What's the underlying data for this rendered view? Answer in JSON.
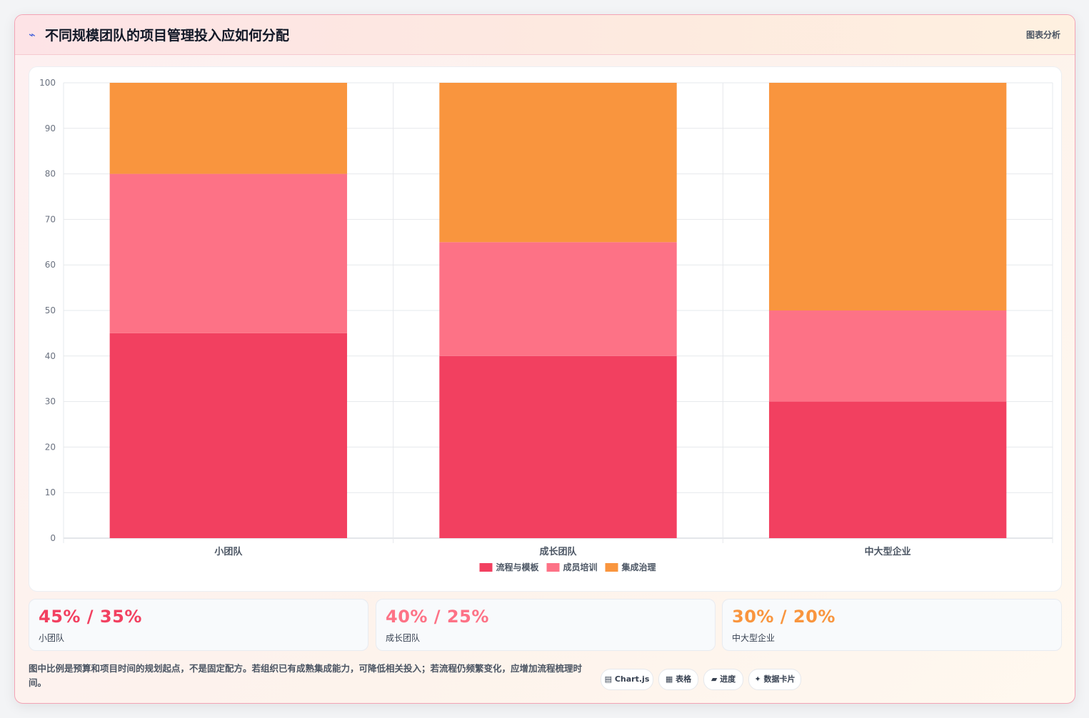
{
  "header": {
    "icon": "chart-line-icon",
    "title": "不同规模团队的项目管理投入应如何分配",
    "right_label": "图表分析"
  },
  "chart_data": {
    "type": "bar",
    "stacked": true,
    "title": "",
    "xlabel": "",
    "ylabel": "",
    "categories": [
      "小团队",
      "成长团队",
      "中大型企业"
    ],
    "series": [
      {
        "name": "流程与模板",
        "color": "#f24060",
        "values": [
          45,
          40,
          30
        ]
      },
      {
        "name": "成员培训",
        "color": "#fd7286",
        "values": [
          35,
          25,
          20
        ]
      },
      {
        "name": "集成治理",
        "color": "#f9953e",
        "values": [
          20,
          35,
          50
        ]
      }
    ],
    "ylim": [
      0,
      100
    ],
    "yticks": [
      0,
      10,
      20,
      30,
      40,
      50,
      60,
      70,
      80,
      90,
      100
    ],
    "grid": true,
    "legend": "bottom"
  },
  "stats": [
    {
      "value": "45% / 35%",
      "label": "小团队",
      "color": "#f24060"
    },
    {
      "value": "40% / 25%",
      "label": "成长团队",
      "color": "#fd7286"
    },
    {
      "value": "30% / 20%",
      "label": "中大型企业",
      "color": "#f9953e"
    }
  ],
  "note": "图中比例是预算和项目时间的规划起点，不是固定配方。若组织已有成熟集成能力，可降低相关投入；若流程仍频繁变化，应增加流程梳理时间。",
  "chips": [
    {
      "icon": "chart-icon",
      "glyph": "▤",
      "label": "Chart.js"
    },
    {
      "icon": "table-icon",
      "glyph": "▦",
      "label": "表格"
    },
    {
      "icon": "progress-icon",
      "glyph": "▰",
      "label": "进度"
    },
    {
      "icon": "sparkle-icon",
      "glyph": "✦",
      "label": "数据卡片"
    }
  ]
}
